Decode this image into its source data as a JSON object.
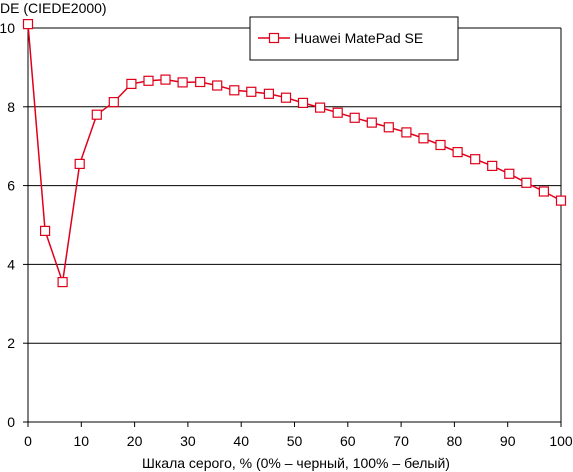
{
  "chart_data": {
    "type": "line",
    "ylabel": "DE (CIEDE2000)",
    "xlabel": "Шкала серого, % (0% – черный, 100% – белый)",
    "xlim": [
      0,
      100
    ],
    "ylim": [
      0,
      10
    ],
    "xticks": [
      0,
      10,
      20,
      30,
      40,
      50,
      60,
      70,
      80,
      90,
      100
    ],
    "yticks": [
      0,
      2,
      4,
      6,
      8,
      10
    ],
    "grid": "horizontal",
    "legend_position": "top-right",
    "series": [
      {
        "name": "Huawei MatePad SE",
        "color": "#e0001a",
        "marker": "open-square",
        "x": [
          0,
          3.2,
          6.5,
          9.7,
          12.9,
          16.1,
          19.4,
          22.6,
          25.8,
          29.0,
          32.3,
          35.5,
          38.7,
          41.9,
          45.2,
          48.4,
          51.6,
          54.8,
          58.1,
          61.3,
          64.5,
          67.7,
          71.0,
          74.2,
          77.4,
          80.6,
          83.9,
          87.1,
          90.3,
          93.5,
          96.8,
          100
        ],
        "y": [
          10.1,
          4.85,
          3.55,
          6.55,
          7.8,
          8.12,
          8.58,
          8.66,
          8.69,
          8.62,
          8.63,
          8.54,
          8.42,
          8.38,
          8.33,
          8.23,
          8.1,
          7.98,
          7.85,
          7.72,
          7.6,
          7.48,
          7.35,
          7.2,
          7.03,
          6.85,
          6.67,
          6.5,
          6.3,
          6.07,
          5.85,
          5.62
        ]
      }
    ]
  }
}
